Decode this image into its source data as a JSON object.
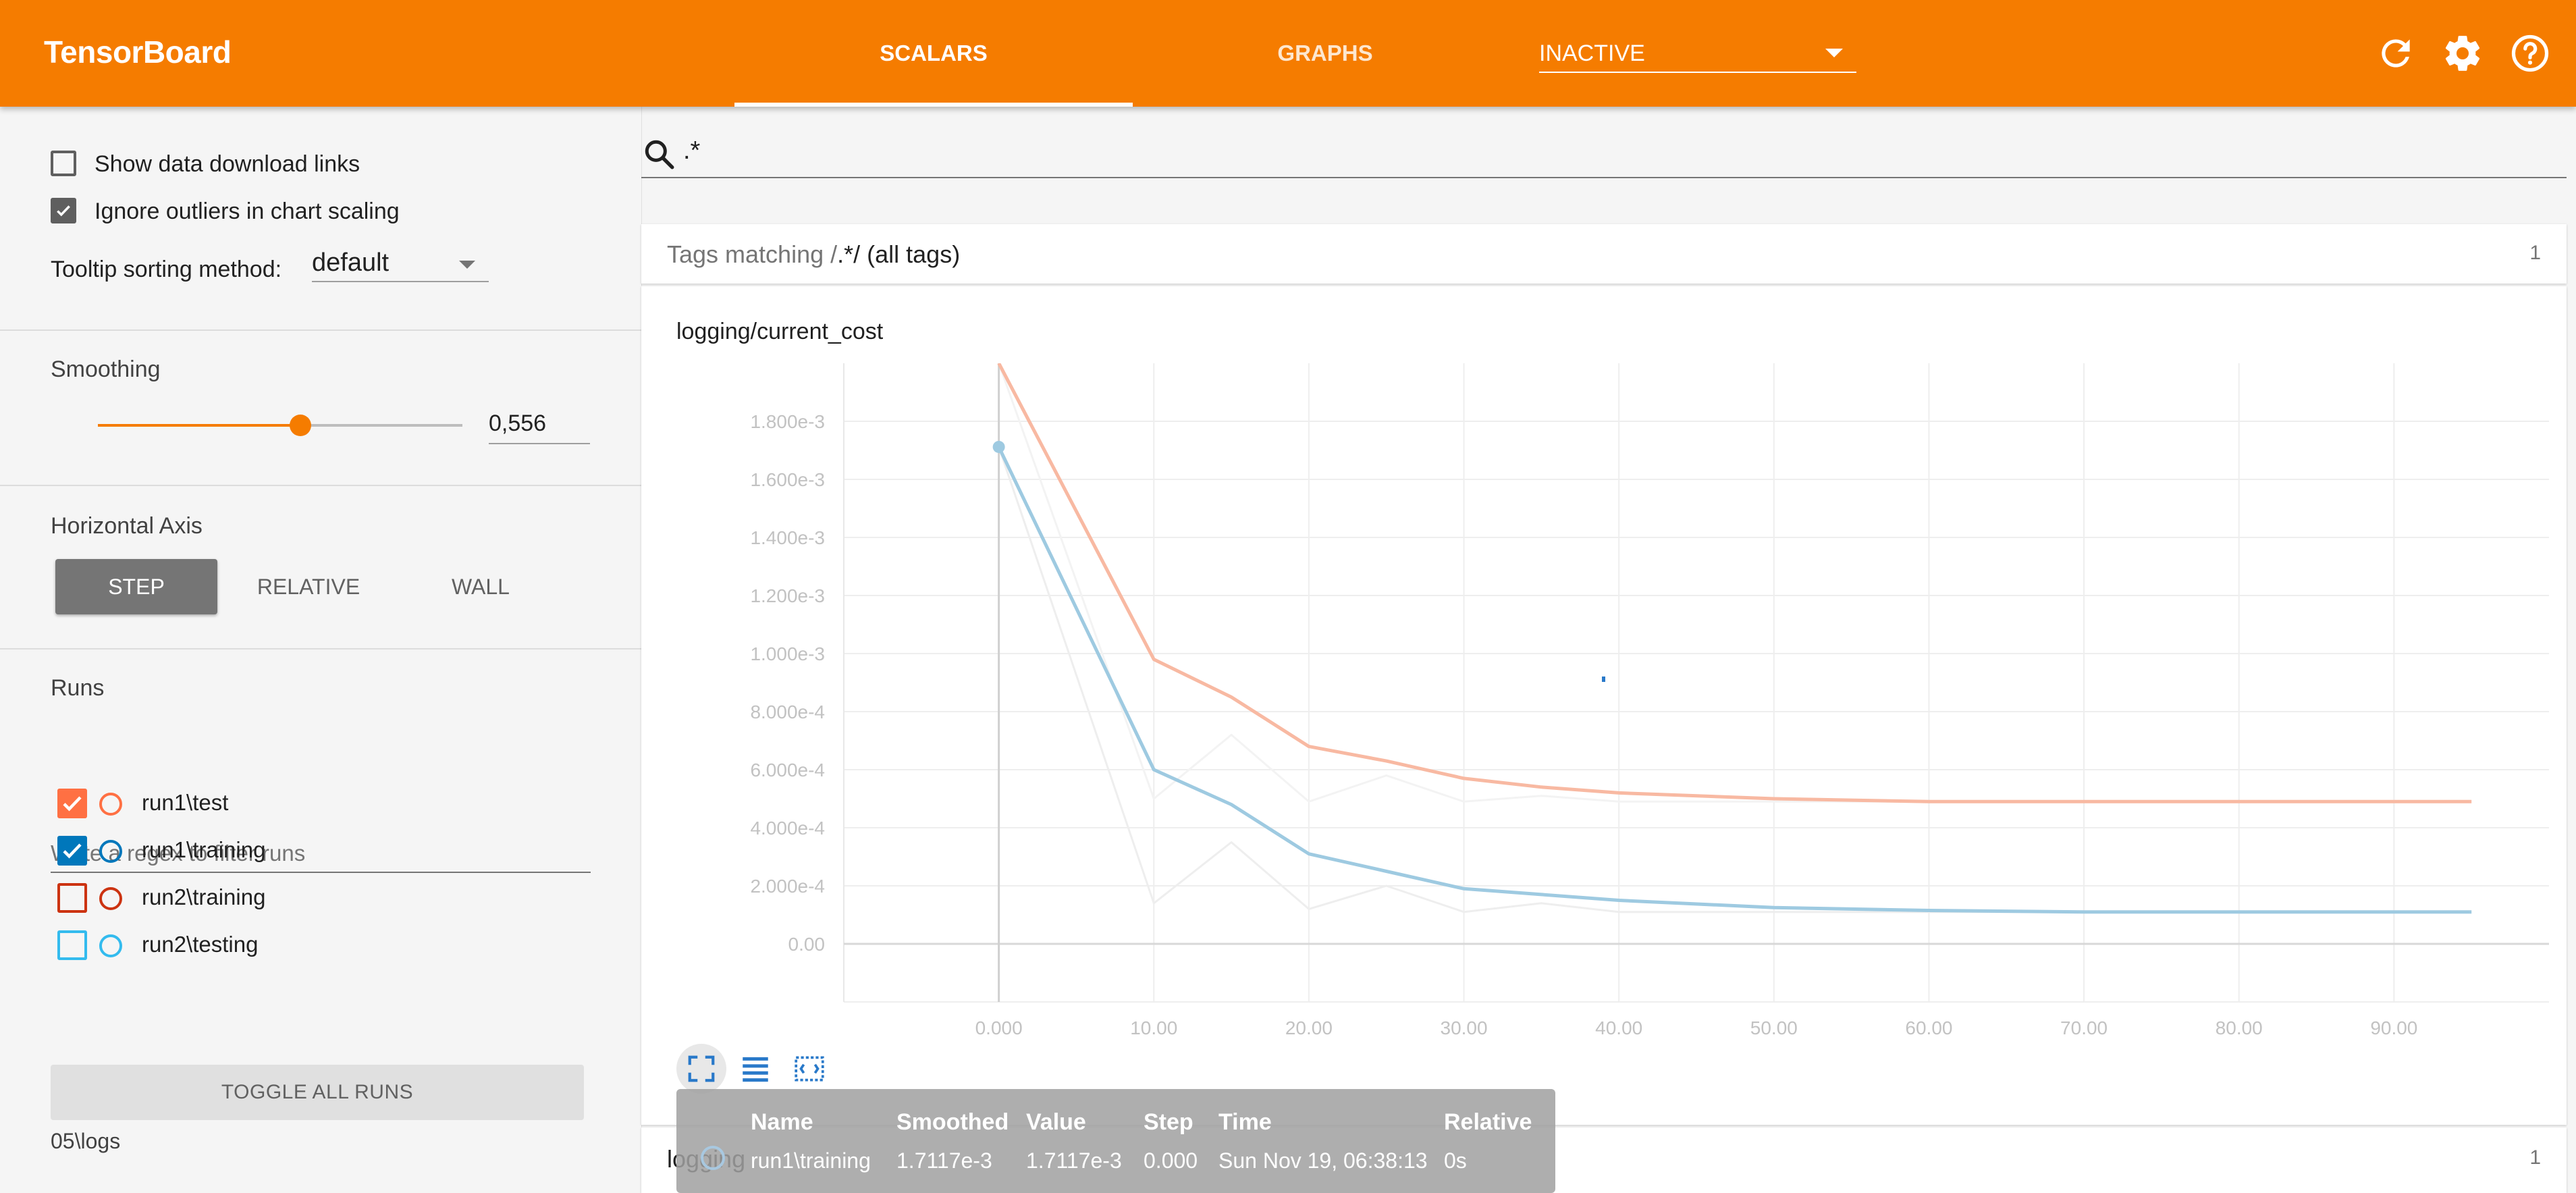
{
  "header": {
    "brand": "TensorBoard",
    "tabs": [
      {
        "label": "SCALARS",
        "active": true
      },
      {
        "label": "GRAPHS",
        "active": false
      }
    ],
    "inactive_select": "INACTIVE",
    "accent_color": "#f57c00",
    "icons": [
      "refresh-icon",
      "settings-gear-icon",
      "help-icon"
    ]
  },
  "sidebar": {
    "show_download_links": {
      "label": "Show data download links",
      "checked": false
    },
    "ignore_outliers": {
      "label": "Ignore outliers in chart scaling",
      "checked": true
    },
    "tooltip_sorting": {
      "label": "Tooltip sorting method:",
      "value": "default"
    },
    "smoothing": {
      "title": "Smoothing",
      "value": "0,556",
      "fraction": 0.556
    },
    "horizontal_axis": {
      "title": "Horizontal Axis",
      "options": [
        "STEP",
        "RELATIVE",
        "WALL"
      ],
      "selected": "STEP"
    },
    "runs": {
      "title": "Runs",
      "filter_placeholder": "Write a regex to filter runs",
      "items": [
        {
          "name": "run1\\test",
          "checked": true,
          "color": "#ff7043"
        },
        {
          "name": "run1\\training",
          "checked": true,
          "color": "#0077bb"
        },
        {
          "name": "run2\\training",
          "checked": false,
          "color": "#cc3311"
        },
        {
          "name": "run2\\testing",
          "checked": false,
          "color": "#33bbee"
        }
      ]
    },
    "toggle_all_label": "TOGGLE ALL RUNS",
    "logdir": "05\\logs"
  },
  "main": {
    "search_value": ".*",
    "tags_header": {
      "prefix": "Tags matching /",
      "pattern": ".*",
      "suffix": "/ (all tags)",
      "count": "1"
    },
    "chart_title": "logging/current_cost",
    "second_card": {
      "label": "logging",
      "count": "1"
    }
  },
  "chart_data": {
    "type": "line",
    "title": "logging/current_cost",
    "xlabel": "",
    "ylabel": "",
    "xlim": [
      -10,
      100
    ],
    "ylim": [
      -0.0002,
      0.002
    ],
    "xticks": [
      "0.000",
      "10.00",
      "20.00",
      "30.00",
      "40.00",
      "50.00",
      "60.00",
      "70.00",
      "80.00",
      "90.00"
    ],
    "xtick_values": [
      0,
      10,
      20,
      30,
      40,
      50,
      60,
      70,
      80,
      90
    ],
    "yticks": [
      "0.00",
      "2.000e-4",
      "4.000e-4",
      "6.000e-4",
      "8.000e-4",
      "1.000e-3",
      "1.200e-3",
      "1.400e-3",
      "1.600e-3",
      "1.800e-3"
    ],
    "ytick_values": [
      0,
      0.0002,
      0.0004,
      0.0006,
      0.0008,
      0.001,
      0.0012,
      0.0014,
      0.0016,
      0.0018
    ],
    "grid": true,
    "series": [
      {
        "name": "run1\\test",
        "role": "smoothed",
        "color": "#f8b9a2",
        "x": [
          0,
          10,
          15,
          20,
          25,
          30,
          35,
          40,
          50,
          60,
          70,
          80,
          95
        ],
        "y": [
          0.002,
          0.00098,
          0.00085,
          0.00068,
          0.00063,
          0.00057,
          0.00054,
          0.00052,
          0.0005,
          0.00049,
          0.00049,
          0.00049,
          0.00049
        ]
      },
      {
        "name": "run1\\test",
        "role": "raw",
        "color": "#f3f3f3",
        "x": [
          0,
          10,
          15,
          20,
          25,
          30,
          35,
          40,
          50,
          60,
          70,
          80,
          95
        ],
        "y": [
          0.002,
          0.0005,
          0.00072,
          0.00049,
          0.00058,
          0.00049,
          0.00051,
          0.00049,
          0.00049,
          0.00049,
          0.00049,
          0.00049,
          0.00049
        ]
      },
      {
        "name": "run1\\training",
        "role": "smoothed",
        "color": "#9ecae1",
        "x": [
          0,
          10,
          15,
          20,
          25,
          30,
          35,
          40,
          50,
          60,
          70,
          80,
          95
        ],
        "y": [
          0.0017117,
          0.0006,
          0.00048,
          0.00031,
          0.00025,
          0.00019,
          0.00017,
          0.00015,
          0.000125,
          0.000115,
          0.00011,
          0.00011,
          0.00011
        ]
      },
      {
        "name": "run1\\training",
        "role": "raw",
        "color": "#eeeeee",
        "x": [
          0,
          10,
          15,
          20,
          25,
          30,
          35,
          40,
          50,
          60,
          70,
          80,
          95
        ],
        "y": [
          0.0017117,
          0.00014,
          0.00035,
          0.00012,
          0.0002,
          0.00011,
          0.00014,
          0.00011,
          0.00011,
          0.00011,
          0.00011,
          0.00011,
          0.00011
        ]
      }
    ],
    "highlight_point": {
      "x": 0,
      "y": 0.0017117,
      "color": "#9ecae1"
    },
    "tooltip": {
      "headers": [
        "Name",
        "Smoothed",
        "Value",
        "Step",
        "Time",
        "Relative"
      ],
      "row": [
        "run1\\training",
        "1.7117e-3",
        "1.7117e-3",
        "0.000",
        "Sun Nov 19, 06:38:13",
        "0s"
      ]
    }
  }
}
